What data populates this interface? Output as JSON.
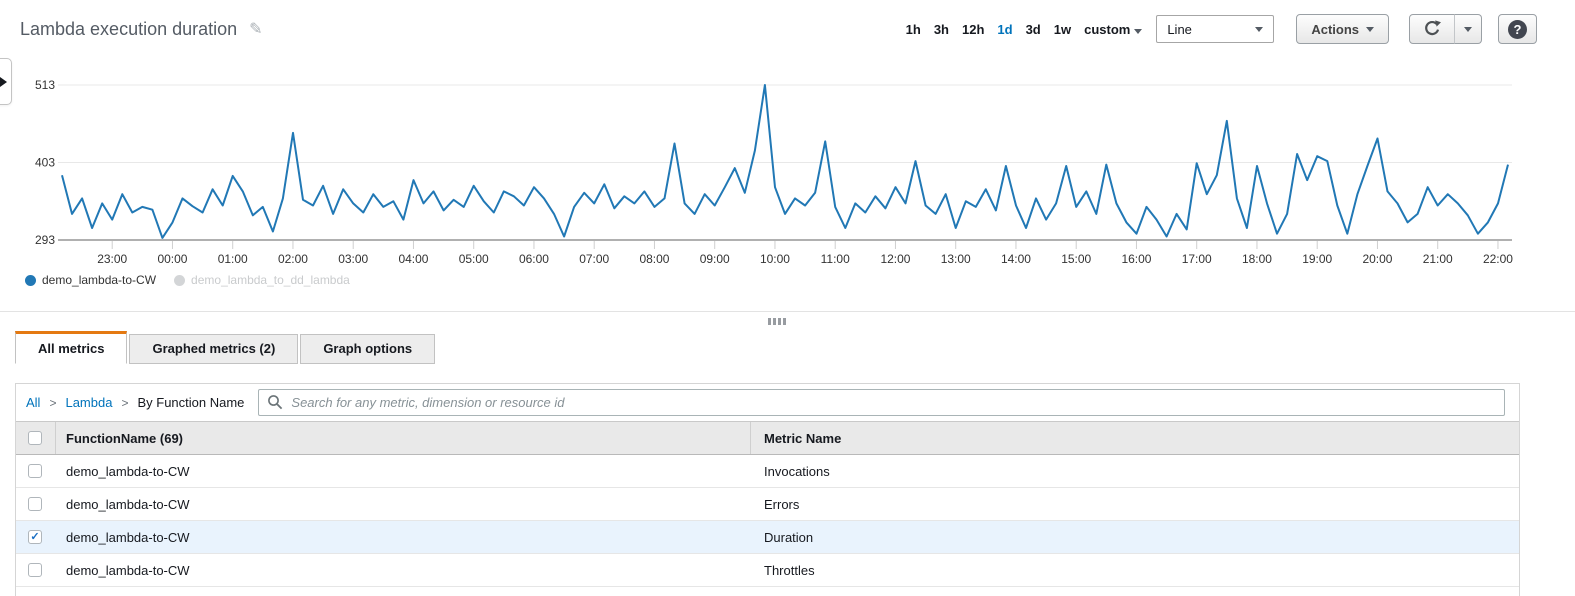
{
  "header": {
    "title": "Lambda execution duration",
    "time_ranges": [
      "1h",
      "3h",
      "12h",
      "1d",
      "3d",
      "1w"
    ],
    "selected_range": "1d",
    "custom_label": "custom",
    "chart_type_selector": "Line",
    "actions_label": "Actions"
  },
  "icons": {
    "pencil": "✎",
    "check": "✓",
    "help": "?"
  },
  "colors": {
    "chart_line": "#2178b5",
    "tab_accent": "#e47911",
    "link_blue": "#0073bb",
    "selected_row_bg": "#e9f3fd",
    "disabled_legend_dot": "#d3d5d7"
  },
  "chart_data": {
    "type": "line",
    "title": "Lambda execution duration",
    "xlabel": "",
    "ylabel": "",
    "ylim": [
      293,
      513
    ],
    "y_ticks": [
      293,
      403,
      513
    ],
    "grid": true,
    "legend_position": "bottom",
    "x_tick_labels": [
      "23:00",
      "00:00",
      "01:00",
      "02:00",
      "03:00",
      "04:00",
      "05:00",
      "06:00",
      "07:00",
      "08:00",
      "09:00",
      "10:00",
      "11:00",
      "12:00",
      "13:00",
      "14:00",
      "15:00",
      "16:00",
      "17:00",
      "18:00",
      "19:00",
      "20:00",
      "21:00",
      "22:00"
    ],
    "x_start_time": "22:10",
    "x_interval_minutes": 10,
    "first_tick_index": 5,
    "points_per_tick": 6,
    "series": [
      {
        "name": "demo_lambda-to-CW",
        "color": "#2178b5",
        "enabled": true,
        "values": [
          385,
          330,
          352,
          310,
          345,
          322,
          358,
          332,
          340,
          336,
          296,
          318,
          352,
          341,
          332,
          365,
          342,
          384,
          362,
          328,
          340,
          305,
          352,
          445,
          350,
          342,
          370,
          330,
          365,
          345,
          332,
          358,
          340,
          348,
          322,
          378,
          345,
          362,
          335,
          350,
          340,
          370,
          348,
          332,
          362,
          355,
          342,
          368,
          352,
          330,
          298,
          340,
          360,
          345,
          372,
          338,
          355,
          345,
          362,
          340,
          352,
          430,
          345,
          330,
          358,
          342,
          368,
          395,
          360,
          420,
          513,
          368,
          330,
          352,
          342,
          360,
          433,
          340,
          310,
          345,
          332,
          355,
          338,
          368,
          345,
          405,
          342,
          330,
          358,
          310,
          348,
          340,
          365,
          335,
          398,
          342,
          310,
          352,
          322,
          345,
          398,
          340,
          362,
          330,
          400,
          345,
          318,
          302,
          340,
          322,
          298,
          330,
          308,
          402,
          358,
          385,
          462,
          352,
          310,
          398,
          345,
          302,
          330,
          415,
          378,
          412,
          405,
          342,
          302,
          358,
          398,
          437,
          362,
          345,
          318,
          330,
          368,
          342,
          358,
          345,
          328,
          302,
          318,
          345,
          400
        ]
      },
      {
        "name": "demo_lambda_to_dd_lambda",
        "color": "#d3d5d7",
        "enabled": false,
        "values": []
      }
    ]
  },
  "tabs": [
    {
      "label": "All metrics",
      "active": true
    },
    {
      "label": "Graphed metrics (2)",
      "active": false
    },
    {
      "label": "Graph options",
      "active": false
    }
  ],
  "breadcrumb": {
    "separator": ">",
    "items": [
      {
        "label": "All",
        "link": true
      },
      {
        "label": "Lambda",
        "link": true
      },
      {
        "label": "By Function Name",
        "link": false
      }
    ]
  },
  "search": {
    "placeholder": "Search for any metric, dimension or resource id"
  },
  "table": {
    "columns": {
      "function_name": "FunctionName (69)",
      "metric_name": "Metric Name"
    },
    "rows": [
      {
        "function": "demo_lambda-to-CW",
        "metric": "Invocations",
        "checked": false,
        "selected": false
      },
      {
        "function": "demo_lambda-to-CW",
        "metric": "Errors",
        "checked": false,
        "selected": false
      },
      {
        "function": "demo_lambda-to-CW",
        "metric": "Duration",
        "checked": true,
        "selected": true
      },
      {
        "function": "demo_lambda-to-CW",
        "metric": "Throttles",
        "checked": false,
        "selected": false
      }
    ]
  }
}
